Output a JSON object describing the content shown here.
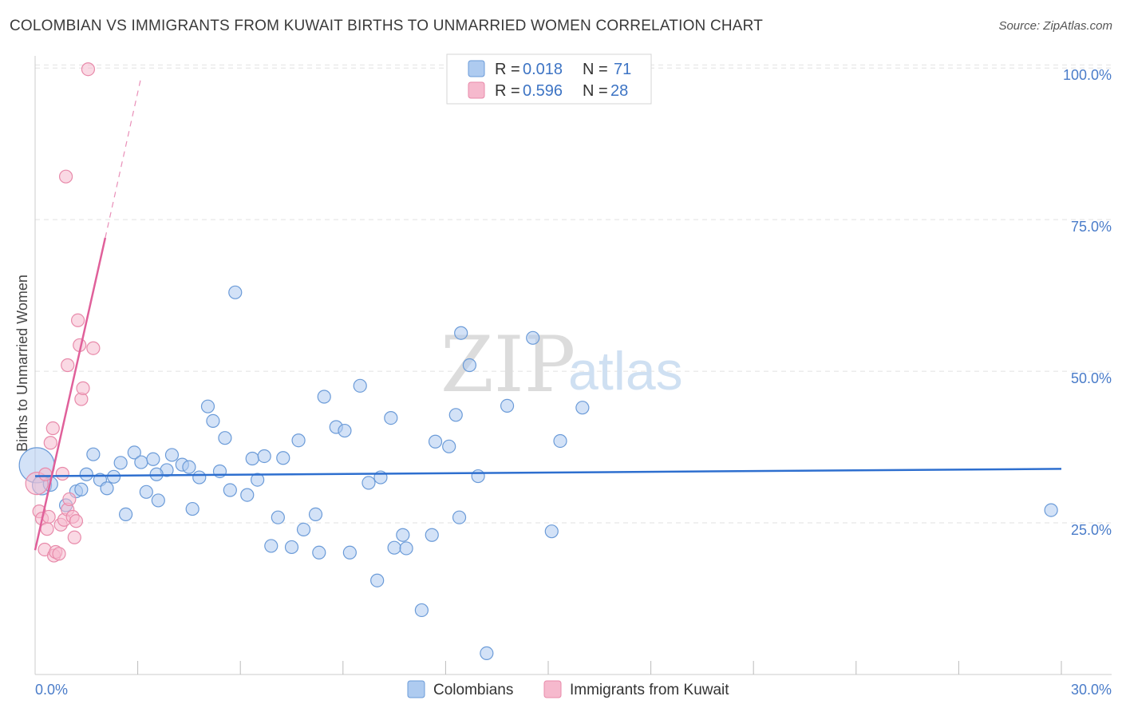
{
  "title": "COLOMBIAN VS IMMIGRANTS FROM KUWAIT BIRTHS TO UNMARRIED WOMEN CORRELATION CHART",
  "source": "Source: ZipAtlas.com",
  "watermark": {
    "zip": "ZIP",
    "atlas": "atlas"
  },
  "colors": {
    "blue_fill": "#aecbf0",
    "blue_stroke": "#6b9bd8",
    "blue_line": "#2e6fcf",
    "pink_fill": "#f6b9cd",
    "pink_stroke": "#e88aaa",
    "pink_line": "#e0609a",
    "tick_text": "#4a7cc9",
    "grid": "#e2e2e2"
  },
  "legend_top": {
    "rows": [
      {
        "r_label": "R = ",
        "r_value": "0.018",
        "n_label": "N = ",
        "n_value": "71",
        "color": "blue"
      },
      {
        "r_label": "R = ",
        "r_value": "0.596",
        "n_label": "N = ",
        "n_value": "28",
        "color": "pink"
      }
    ]
  },
  "legend_bottom": [
    {
      "label": "Colombians",
      "color": "blue"
    },
    {
      "label": "Immigrants from Kuwait",
      "color": "pink"
    }
  ],
  "chart_data": {
    "type": "scatter",
    "title": "COLOMBIAN VS IMMIGRANTS FROM KUWAIT BIRTHS TO UNMARRIED WOMEN CORRELATION CHART",
    "xlabel": "",
    "ylabel": "Births to Unmarried Women",
    "xlim": [
      0,
      30
    ],
    "ylim": [
      0,
      102
    ],
    "x_tick_labels": [
      {
        "value": 0,
        "label": "0.0%"
      },
      {
        "value": 30,
        "label": "30.0%"
      }
    ],
    "y_tick_labels": [
      {
        "value": 25,
        "label": "25.0%"
      },
      {
        "value": 50,
        "label": "50.0%"
      },
      {
        "value": 75,
        "label": "75.0%"
      },
      {
        "value": 100,
        "label": "100.0%"
      }
    ],
    "grid": true,
    "series": [
      {
        "name": "Colombians",
        "color": "blue",
        "r": 0.018,
        "n": 71,
        "trend": {
          "x0": 0,
          "y0": 32.7,
          "x1": 30,
          "y1": 33.9
        },
        "points": [
          [
            0.05,
            34.5,
            22
          ],
          [
            0.2,
            31.2,
            12
          ],
          [
            0.45,
            31.4,
            9
          ],
          [
            0.9,
            27.9,
            8
          ],
          [
            1.2,
            30.2,
            8
          ],
          [
            1.35,
            30.5,
            8
          ],
          [
            1.5,
            33.0,
            8
          ],
          [
            1.7,
            36.3,
            8
          ],
          [
            1.9,
            32.1,
            8
          ],
          [
            2.1,
            30.7,
            8
          ],
          [
            2.3,
            32.6,
            8
          ],
          [
            2.5,
            34.9,
            8
          ],
          [
            2.65,
            26.4,
            8
          ],
          [
            2.9,
            36.6,
            8
          ],
          [
            3.1,
            35.0,
            8
          ],
          [
            3.25,
            30.1,
            8
          ],
          [
            3.45,
            35.5,
            8
          ],
          [
            3.6,
            28.7,
            8
          ],
          [
            3.85,
            33.7,
            8
          ],
          [
            4.0,
            36.2,
            8
          ],
          [
            4.3,
            34.6,
            8
          ],
          [
            4.5,
            34.2,
            8
          ],
          [
            4.6,
            27.3,
            8
          ],
          [
            4.8,
            32.5,
            8
          ],
          [
            5.05,
            44.2,
            8
          ],
          [
            5.2,
            41.8,
            8
          ],
          [
            5.4,
            33.5,
            8
          ],
          [
            5.55,
            39.0,
            8
          ],
          [
            5.7,
            30.4,
            8
          ],
          [
            5.85,
            63.0,
            8
          ],
          [
            6.2,
            29.6,
            8
          ],
          [
            6.35,
            35.6,
            8
          ],
          [
            6.5,
            32.1,
            8
          ],
          [
            6.7,
            36.0,
            8
          ],
          [
            6.9,
            21.2,
            8
          ],
          [
            7.1,
            25.9,
            8
          ],
          [
            7.25,
            35.7,
            8
          ],
          [
            7.5,
            21.0,
            8
          ],
          [
            7.7,
            38.6,
            8
          ],
          [
            7.85,
            23.9,
            8
          ],
          [
            8.2,
            26.4,
            8
          ],
          [
            8.3,
            20.1,
            8
          ],
          [
            8.45,
            45.8,
            8
          ],
          [
            8.8,
            40.8,
            8
          ],
          [
            9.05,
            40.2,
            8
          ],
          [
            9.2,
            20.1,
            8
          ],
          [
            9.5,
            47.6,
            8
          ],
          [
            9.75,
            31.6,
            8
          ],
          [
            10.0,
            15.5,
            8
          ],
          [
            10.1,
            32.5,
            8
          ],
          [
            10.4,
            42.3,
            8
          ],
          [
            10.5,
            20.9,
            8
          ],
          [
            10.75,
            23.0,
            8
          ],
          [
            10.85,
            20.8,
            8
          ],
          [
            11.3,
            10.6,
            8
          ],
          [
            11.6,
            23.0,
            8
          ],
          [
            11.7,
            38.4,
            8
          ],
          [
            12.1,
            37.6,
            8
          ],
          [
            12.3,
            42.8,
            8
          ],
          [
            12.45,
            56.3,
            8
          ],
          [
            12.4,
            25.9,
            8
          ],
          [
            12.7,
            51.0,
            8
          ],
          [
            12.95,
            32.7,
            8
          ],
          [
            13.2,
            3.5,
            8
          ],
          [
            13.8,
            44.3,
            8
          ],
          [
            14.55,
            55.5,
            8
          ],
          [
            15.1,
            23.6,
            8
          ],
          [
            15.35,
            38.5,
            8
          ],
          [
            16.0,
            44.0,
            8
          ],
          [
            29.7,
            27.1,
            8
          ],
          [
            3.55,
            33.0,
            8
          ]
        ]
      },
      {
        "name": "Immigrants from Kuwait",
        "color": "pink",
        "r": 0.596,
        "n": 28,
        "trend": {
          "x0": 0,
          "y0": 20.5,
          "x1": 2.05,
          "y1": 72.0,
          "x_dash_end": 3.1,
          "y_dash_end": 98.5
        },
        "points": [
          [
            0.05,
            31.5,
            14
          ],
          [
            0.12,
            26.9,
            8
          ],
          [
            0.2,
            25.7,
            8
          ],
          [
            0.28,
            20.6,
            8
          ],
          [
            0.35,
            24.0,
            8
          ],
          [
            0.4,
            26.0,
            8
          ],
          [
            0.45,
            38.2,
            8
          ],
          [
            0.52,
            40.6,
            8
          ],
          [
            0.55,
            19.6,
            8
          ],
          [
            0.6,
            20.2,
            8
          ],
          [
            0.7,
            19.9,
            8
          ],
          [
            0.75,
            24.7,
            8
          ],
          [
            0.8,
            33.1,
            8
          ],
          [
            0.85,
            25.5,
            8
          ],
          [
            0.9,
            82.1,
            8
          ],
          [
            0.95,
            51.0,
            8
          ],
          [
            0.95,
            27.2,
            8
          ],
          [
            1.0,
            28.9,
            8
          ],
          [
            1.1,
            26.0,
            8
          ],
          [
            1.15,
            22.6,
            8
          ],
          [
            1.2,
            25.3,
            8
          ],
          [
            1.25,
            58.4,
            8
          ],
          [
            1.3,
            54.3,
            8
          ],
          [
            1.35,
            45.4,
            8
          ],
          [
            1.4,
            47.2,
            8
          ],
          [
            1.55,
            99.8,
            8
          ],
          [
            1.7,
            53.8,
            8
          ],
          [
            0.3,
            33.0,
            8
          ]
        ]
      }
    ]
  }
}
